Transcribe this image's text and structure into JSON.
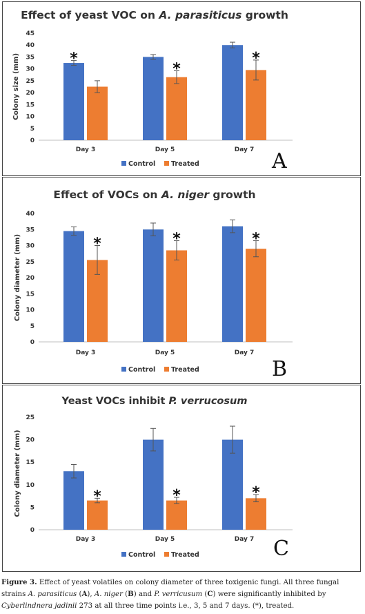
{
  "colors": {
    "control": "#4472C4",
    "treated": "#ED7D31",
    "error_bar": "#555555",
    "axis": "#bfbfbf"
  },
  "chart_data": [
    {
      "type": "bar",
      "panel_letter": "A",
      "title_prefix": "Effect of yeast VOC on ",
      "title_italic": "A. parasiticus",
      "title_suffix": " growth",
      "xlabel": "",
      "ylabel": "Colony size (mm)",
      "ylim": [
        0,
        45
      ],
      "yticks": [
        0,
        5,
        10,
        15,
        20,
        25,
        30,
        35,
        40,
        45
      ],
      "categories": [
        "Day 3",
        "Day 5",
        "Day 7"
      ],
      "series": [
        {
          "name": "Control",
          "values": [
            32.5,
            35,
            40
          ],
          "errors": [
            1.0,
            1.0,
            1.2
          ]
        },
        {
          "name": "Treated",
          "values": [
            22.5,
            26.5,
            29.5
          ],
          "errors": [
            2.5,
            2.7,
            4.2
          ]
        }
      ],
      "significance_marks": [
        "*",
        "*",
        "*"
      ],
      "legend_position": "bottom",
      "grid": false
    },
    {
      "type": "bar",
      "panel_letter": "B",
      "title_prefix": "Effect of VOCs on ",
      "title_italic": "A. niger",
      "title_suffix": " growth",
      "xlabel": "",
      "ylabel": "Colony diameter (mm)",
      "ylim": [
        0,
        40
      ],
      "yticks": [
        0,
        5,
        10,
        15,
        20,
        25,
        30,
        35,
        40
      ],
      "categories": [
        "Day 3",
        "Day 5",
        "Day 7"
      ],
      "series": [
        {
          "name": "Control",
          "values": [
            34.5,
            35,
            36
          ],
          "errors": [
            1.3,
            2.0,
            2.0
          ]
        },
        {
          "name": "Treated",
          "values": [
            25.5,
            28.5,
            29
          ],
          "errors": [
            4.5,
            3.0,
            2.5
          ]
        }
      ],
      "significance_marks": [
        "*",
        "*",
        "*"
      ],
      "legend_position": "bottom",
      "grid": false
    },
    {
      "type": "bar",
      "panel_letter": "C",
      "title_prefix": "Yeast VOCs inhibit ",
      "title_italic": "P. verrucosum",
      "title_suffix": "",
      "xlabel": "",
      "ylabel": "Colony diameter (mm)",
      "ylim": [
        0,
        25
      ],
      "yticks": [
        0,
        5,
        10,
        15,
        20,
        25
      ],
      "categories": [
        "Day 3",
        "Day 5",
        "Day 7"
      ],
      "series": [
        {
          "name": "Control",
          "values": [
            13,
            20,
            20
          ],
          "errors": [
            1.5,
            2.5,
            3.0
          ]
        },
        {
          "name": "Treated",
          "values": [
            6.5,
            6.5,
            7
          ],
          "errors": [
            0.5,
            0.7,
            0.8
          ]
        }
      ],
      "significance_marks": [
        "*",
        "*",
        "*"
      ],
      "legend_position": "bottom",
      "grid": false
    }
  ],
  "caption": {
    "label": "Figure 3.",
    "text_1": " Effect of yeast volatiles on colony diameter of three toxigenic fungi. All three fungal strains ",
    "sp_a": "A. parasiticus",
    "open_a": " (",
    "bold_a": "A",
    "close_a": "), ",
    "sp_b": "A. niger",
    "open_b": " (",
    "bold_b": "B",
    "close_b": ") and ",
    "sp_c": "P. verricusum",
    "open_c": " (",
    "bold_c": "C",
    "close_c": ") were significantly inhibited by ",
    "yeast": "Cyberlindnera jadinii",
    "text_2": " 273 at all three time points i.e., 3, 5 and 7 days. (*), treated."
  }
}
